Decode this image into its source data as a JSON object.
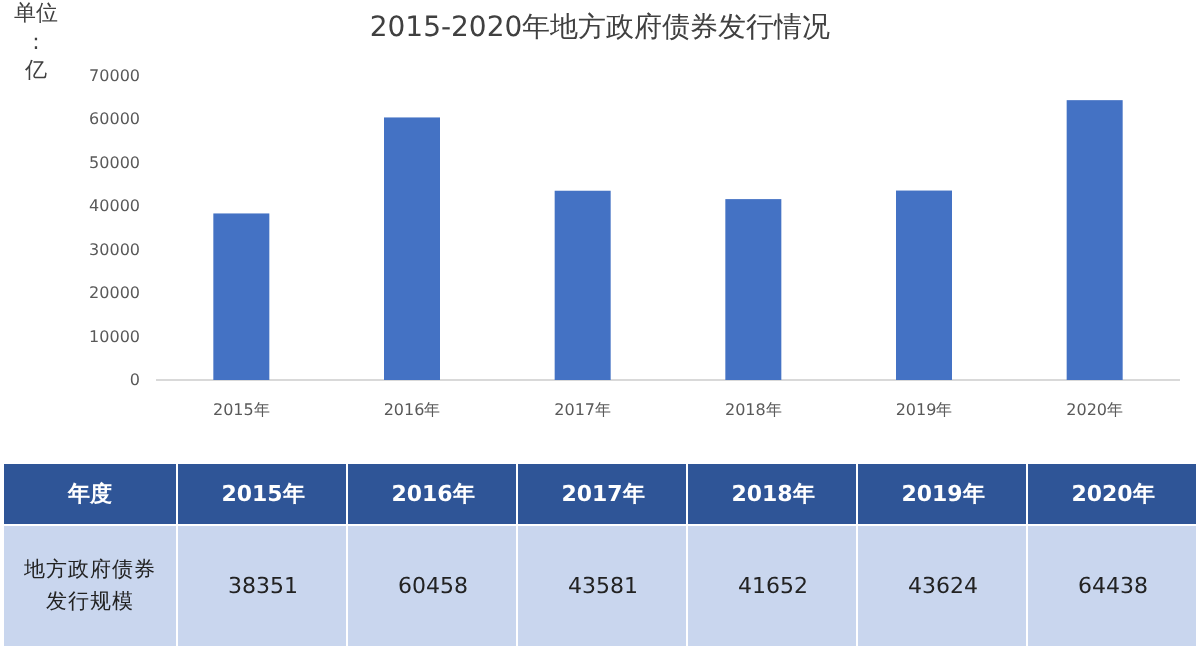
{
  "chart_data": {
    "type": "bar",
    "title": "2015-2020年地方政府债券发行情况",
    "ylabel": "单位:亿",
    "categories": [
      "2015年",
      "2016年",
      "2017年",
      "2018年",
      "2019年",
      "2020年"
    ],
    "values": [
      38351,
      60458,
      43581,
      41652,
      43624,
      64438
    ],
    "color": "#4472c4",
    "ylim": [
      0,
      70000
    ],
    "yticks": [
      0,
      10000,
      20000,
      30000,
      40000,
      50000,
      60000,
      70000
    ],
    "data_labels": true,
    "annotations": [
      "年度",
      "地方政府债券发行规模"
    ]
  }
}
